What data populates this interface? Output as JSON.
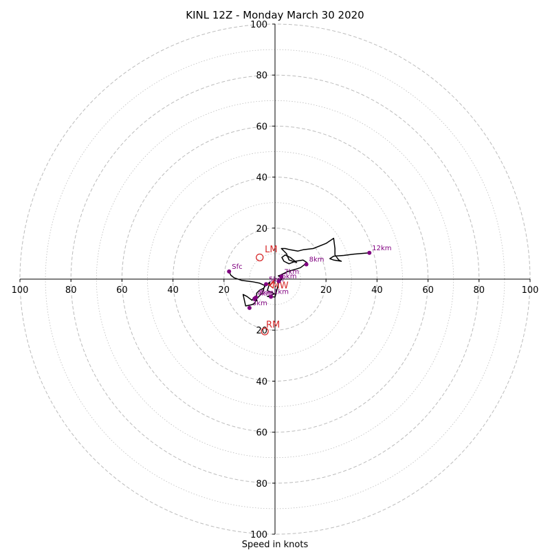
{
  "chart_data": {
    "type": "scatter",
    "title": "KINL 12Z - Monday March 30 2020",
    "xlabel": "Speed in knots",
    "ylabel": "",
    "xlim": [
      -100,
      100
    ],
    "ylim": [
      -100,
      100
    ],
    "grid": true,
    "x_tick_labels": [
      "100",
      "80",
      "60",
      "40",
      "20",
      "20",
      "40",
      "60",
      "80",
      "100"
    ],
    "y_tick_labels": [
      "100",
      "80",
      "60",
      "40",
      "20",
      "20",
      "40",
      "60",
      "80",
      "100"
    ],
    "x_tick_values": [
      -100,
      -80,
      -60,
      -40,
      -20,
      20,
      40,
      60,
      80,
      100
    ],
    "y_tick_values": [
      100,
      80,
      60,
      40,
      20,
      -20,
      -40,
      -60,
      -80,
      -100
    ],
    "hodograph_trace": [
      [
        -18,
        3
      ],
      [
        -17.3,
        1.5
      ],
      [
        -16,
        0.5
      ],
      [
        -13,
        -0.5
      ],
      [
        -9,
        -1
      ],
      [
        -6,
        -1.6
      ],
      [
        -4,
        -2.5
      ],
      [
        -5,
        -5.5
      ],
      [
        -7,
        -7.5
      ],
      [
        -8,
        -9.5
      ],
      [
        -9,
        -10
      ],
      [
        -11.5,
        -10.5
      ],
      [
        -12.5,
        -6
      ],
      [
        -11,
        -6.8
      ],
      [
        -9,
        -8.3
      ],
      [
        -8.5,
        -7.5
      ],
      [
        -7.2,
        -8.5
      ],
      [
        -7.2,
        -5.5
      ],
      [
        -6,
        -4.3
      ],
      [
        -4.5,
        -3.6
      ],
      [
        -3.5,
        -2.2
      ],
      [
        -2,
        -1.2
      ],
      [
        -3,
        -4.5
      ],
      [
        -1.3,
        -5.2
      ],
      [
        -0.3,
        -5.8
      ],
      [
        -1.8,
        -6.5
      ],
      [
        -3,
        -6.8
      ],
      [
        0,
        -7
      ],
      [
        0.8,
        -4
      ],
      [
        1.5,
        -1.3
      ],
      [
        2.5,
        -0.2
      ],
      [
        2.5,
        0.5
      ],
      [
        1.3,
        1.3
      ],
      [
        2,
        1.5
      ],
      [
        3,
        2
      ],
      [
        5,
        3
      ],
      [
        8.5,
        4
      ],
      [
        10,
        4.5
      ],
      [
        12,
        6
      ],
      [
        12.5,
        6.5
      ],
      [
        11,
        7.5
      ],
      [
        8,
        7
      ],
      [
        5.5,
        6
      ],
      [
        3.5,
        7
      ],
      [
        2.7,
        8.5
      ],
      [
        4,
        9.5
      ],
      [
        6,
        8.5
      ],
      [
        8.5,
        6.5
      ],
      [
        5.5,
        7.5
      ],
      [
        4.5,
        10
      ],
      [
        2.5,
        12
      ],
      [
        4,
        12
      ],
      [
        6,
        11.5
      ],
      [
        9,
        11
      ],
      [
        11,
        11.5
      ],
      [
        15,
        12
      ],
      [
        20,
        14
      ],
      [
        23,
        16
      ],
      [
        23.5,
        12
      ],
      [
        23.5,
        9.5
      ],
      [
        25,
        7.5
      ],
      [
        26,
        7
      ],
      [
        23,
        7.5
      ],
      [
        21.5,
        8
      ],
      [
        23,
        9
      ],
      [
        27,
        9.3
      ],
      [
        31,
        9.8
      ],
      [
        37,
        10.3
      ]
    ],
    "height_markers": [
      {
        "label": "Sfc",
        "u": -18,
        "v": 3
      },
      {
        "label": "1km",
        "u": -1.6,
        "v": -6.9
      },
      {
        "label": "2km",
        "u": -7.5,
        "v": -7.2
      },
      {
        "label": "3km",
        "u": -10,
        "v": -11.3
      },
      {
        "label": "4km",
        "u": -8,
        "v": -7.6
      },
      {
        "label": "5km",
        "u": -3.5,
        "v": -2
      },
      {
        "label": "6km",
        "u": 1.5,
        "v": -0.8
      },
      {
        "label": "7km",
        "u": 2.5,
        "v": 1
      },
      {
        "label": "8km",
        "u": 12.3,
        "v": 5.8
      },
      {
        "label": "12km",
        "u": 37,
        "v": 10.3
      }
    ],
    "storm_motion": [
      {
        "label": "LM",
        "u": -6,
        "v": 8.5,
        "label_dx": 2,
        "label_dy": 2
      },
      {
        "label": "RM",
        "u": -4,
        "v": -20.5,
        "label_dx": 0.5,
        "label_dy": 1.5
      }
    ],
    "mean_wind": {
      "label": "MW",
      "u": -2,
      "v": -2.5
    },
    "colors": {
      "trace": "#000000",
      "markers": "#800080",
      "storm_motion": "#d62728",
      "grid": "#bbbbbb",
      "axes": "#000000"
    }
  }
}
